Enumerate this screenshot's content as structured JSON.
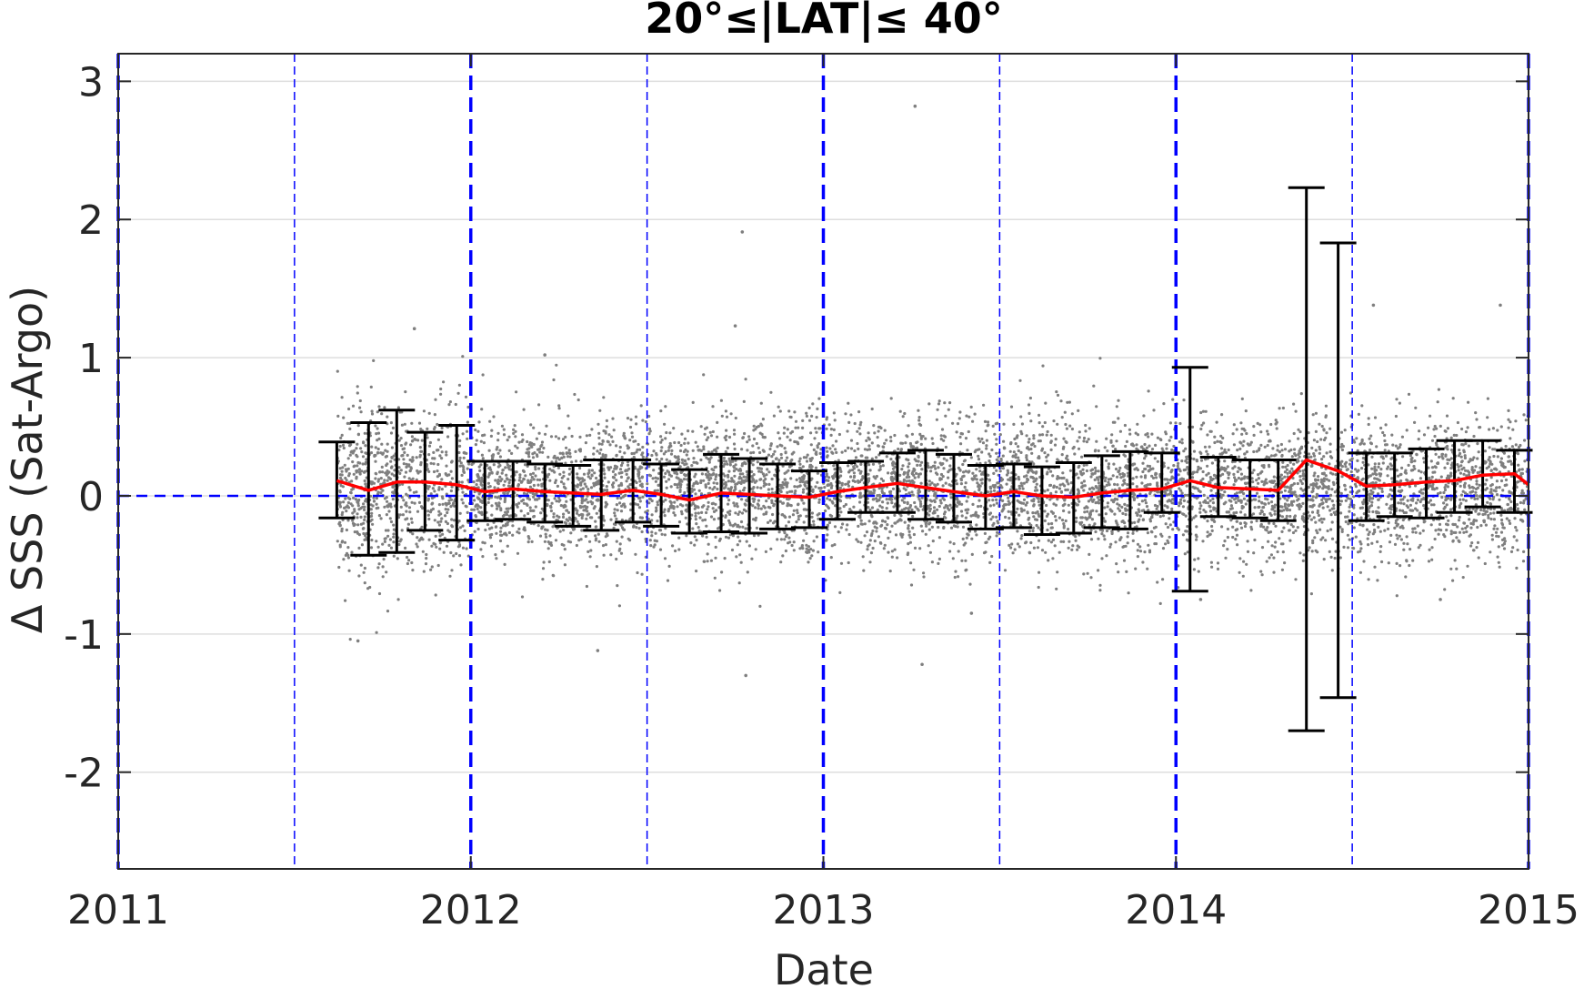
{
  "chart_data": {
    "type": "scatter",
    "title": "20°≤|LAT|≤ 40°",
    "xlabel": "Date",
    "ylabel": "Δ SSS (Sat-Argo)",
    "xlim": [
      2011.0,
      2015.0
    ],
    "ylim": [
      -2.7,
      3.2
    ],
    "x_ticks": [
      2011,
      2012,
      2013,
      2014,
      2015
    ],
    "x_tick_labels": [
      "2011",
      "2012",
      "2013",
      "2014",
      "2015"
    ],
    "y_ticks": [
      -2,
      -1,
      0,
      1,
      2,
      3
    ],
    "y_tick_labels": [
      "-2",
      "-1",
      "0",
      "1",
      "2",
      "3"
    ],
    "grid": "horizontal",
    "colors": {
      "scatter": "#7f7f7f",
      "mean_line": "#ff0000",
      "error_bars": "#000000",
      "reference_lines": "#0000ff",
      "grid": "#dedede",
      "axes": "#262626"
    },
    "vertical_reference_lines": {
      "major": [
        "2011-01-01",
        "2012-01-01",
        "2013-01-01",
        "2014-01-01",
        "2015-01-01"
      ],
      "minor": [
        "2011-07-01",
        "2012-07-01",
        "2013-07-01",
        "2014-07-01"
      ]
    },
    "zero_line": 0,
    "scatter_points": {
      "x_range": [
        2011.62,
        2015.0
      ],
      "y_center": 0.05,
      "y_spread": 0.25,
      "count": 7000,
      "outliers": [
        {
          "x": 2013.26,
          "y": 2.82
        },
        {
          "x": 2012.77,
          "y": 1.91
        },
        {
          "x": 2011.84,
          "y": 1.21
        },
        {
          "x": 2012.75,
          "y": 1.23
        },
        {
          "x": 2012.21,
          "y": 1.02
        },
        {
          "x": 2014.56,
          "y": 1.38
        },
        {
          "x": 2014.92,
          "y": 1.38
        },
        {
          "x": 2012.78,
          "y": -1.3
        },
        {
          "x": 2013.28,
          "y": -1.22
        },
        {
          "x": 2011.68,
          "y": -1.05
        },
        {
          "x": 2012.36,
          "y": -1.12
        },
        {
          "x": 2014.07,
          "y": -0.75
        },
        {
          "x": 2013.42,
          "y": -0.85
        },
        {
          "x": 2014.75,
          "y": -0.75
        }
      ]
    },
    "series": [
      {
        "type": "line",
        "x": [
          2011.62,
          2011.71,
          2011.79,
          2011.87,
          2011.96,
          2012.04,
          2012.12,
          2012.21,
          2012.29,
          2012.37,
          2012.46,
          2012.54,
          2012.62,
          2012.71,
          2012.79,
          2012.87,
          2012.96,
          2013.04,
          2013.12,
          2013.21,
          2013.29,
          2013.37,
          2013.46,
          2013.54,
          2013.62,
          2013.71,
          2013.79,
          2013.87,
          2013.96,
          2014.04,
          2014.12,
          2014.21,
          2014.29,
          2014.37,
          2014.46,
          2014.54,
          2014.62,
          2014.71,
          2014.79,
          2014.87,
          2014.96,
          2015.0
        ],
        "values": [
          0.11,
          0.04,
          0.1,
          0.1,
          0.08,
          0.03,
          0.05,
          0.03,
          0.02,
          0.01,
          0.04,
          0.01,
          -0.03,
          0.02,
          0.01,
          0.0,
          -0.01,
          0.03,
          0.06,
          0.09,
          0.06,
          0.03,
          0.0,
          0.03,
          0.0,
          -0.01,
          0.02,
          0.04,
          0.05,
          0.11,
          0.06,
          0.05,
          0.04,
          0.26,
          0.18,
          0.07,
          0.08,
          0.1,
          0.11,
          0.15,
          0.16,
          0.08
        ]
      },
      {
        "type": "errorbar",
        "x": [
          2011.62,
          2011.71,
          2011.79,
          2011.87,
          2011.96,
          2012.04,
          2012.12,
          2012.21,
          2012.29,
          2012.37,
          2012.46,
          2012.54,
          2012.62,
          2012.71,
          2012.79,
          2012.87,
          2012.96,
          2013.04,
          2013.12,
          2013.21,
          2013.29,
          2013.37,
          2013.46,
          2013.54,
          2013.62,
          2013.71,
          2013.79,
          2013.87,
          2013.96,
          2014.04,
          2014.12,
          2014.21,
          2014.29,
          2014.37,
          2014.46,
          2014.54,
          2014.62,
          2014.71,
          2014.79,
          2014.87,
          2014.96
        ],
        "upper": [
          0.39,
          0.53,
          0.62,
          0.46,
          0.51,
          0.25,
          0.25,
          0.23,
          0.22,
          0.26,
          0.26,
          0.23,
          0.19,
          0.3,
          0.27,
          0.23,
          0.18,
          0.24,
          0.25,
          0.31,
          0.33,
          0.3,
          0.22,
          0.23,
          0.21,
          0.24,
          0.29,
          0.32,
          0.31,
          0.93,
          0.28,
          0.26,
          0.26,
          2.23,
          1.83,
          0.31,
          0.31,
          0.34,
          0.4,
          0.4,
          0.33
        ],
        "lower": [
          -0.16,
          -0.43,
          -0.41,
          -0.25,
          -0.32,
          -0.18,
          -0.17,
          -0.19,
          -0.22,
          -0.25,
          -0.19,
          -0.22,
          -0.27,
          -0.26,
          -0.27,
          -0.24,
          -0.23,
          -0.17,
          -0.12,
          -0.12,
          -0.17,
          -0.19,
          -0.24,
          -0.23,
          -0.28,
          -0.27,
          -0.23,
          -0.24,
          -0.12,
          -0.69,
          -0.15,
          -0.16,
          -0.18,
          -1.7,
          -1.46,
          -0.18,
          -0.15,
          -0.16,
          -0.12,
          -0.08,
          -0.12
        ]
      }
    ]
  }
}
